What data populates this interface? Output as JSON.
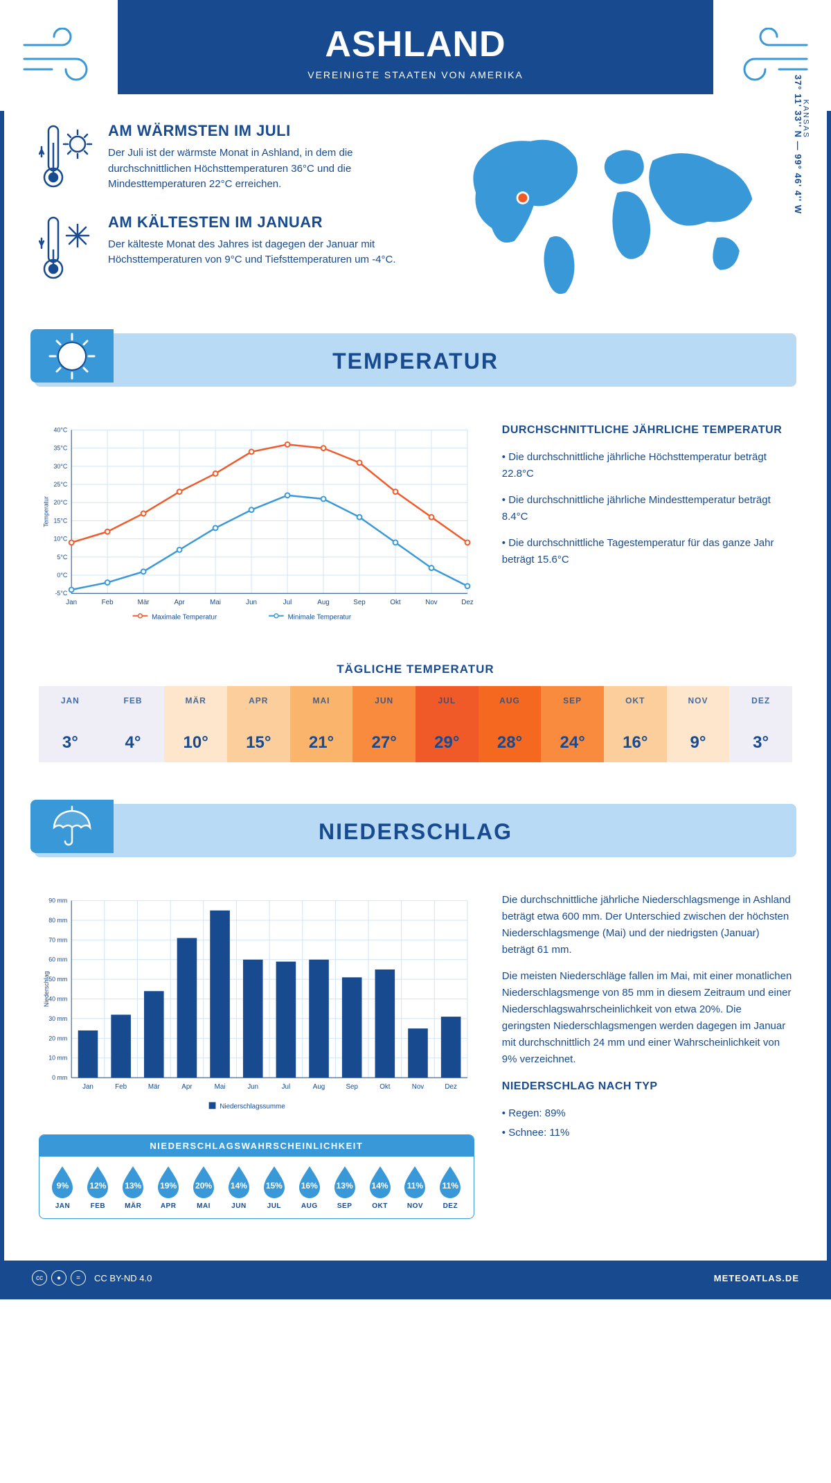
{
  "header": {
    "title": "ASHLAND",
    "subtitle": "VEREINIGTE STAATEN VON AMERIKA"
  },
  "location": {
    "state": "KANSAS",
    "coords": "37° 11' 33'' N — 99° 46' 4'' W"
  },
  "facts": {
    "warmest": {
      "title": "AM WÄRMSTEN IM JULI",
      "text": "Der Juli ist der wärmste Monat in Ashland, in dem die durchschnittlichen Höchsttemperaturen 36°C und die Mindesttemperaturen 22°C erreichen."
    },
    "coldest": {
      "title": "AM KÄLTESTEN IM JANUAR",
      "text": "Der kälteste Monat des Jahres ist dagegen der Januar mit Höchsttemperaturen von 9°C und Tiefsttemperaturen um -4°C."
    }
  },
  "sections": {
    "temp": "TEMPERATUR",
    "precip": "NIEDERSCHLAG"
  },
  "months": [
    "Jan",
    "Feb",
    "Mär",
    "Apr",
    "Mai",
    "Jun",
    "Jul",
    "Aug",
    "Sep",
    "Okt",
    "Nov",
    "Dez"
  ],
  "months_upper": [
    "JAN",
    "FEB",
    "MÄR",
    "APR",
    "MAI",
    "JUN",
    "JUL",
    "AUG",
    "SEP",
    "OKT",
    "NOV",
    "DEZ"
  ],
  "temp_chart": {
    "ylabel": "Temperatur",
    "ymin": -5,
    "ymax": 40,
    "ystep": 5,
    "max_series": {
      "label": "Maximale Temperatur",
      "color": "#f05a28",
      "values": [
        9,
        12,
        17,
        23,
        28,
        34,
        36,
        35,
        31,
        23,
        16,
        9
      ]
    },
    "min_series": {
      "label": "Minimale Temperatur",
      "color": "#3999d8",
      "values": [
        -4,
        -2,
        1,
        7,
        13,
        18,
        22,
        21,
        16,
        9,
        2,
        -3
      ]
    },
    "grid_color": "#cfe4f6",
    "axis_color": "#174a8e"
  },
  "temp_text": {
    "heading": "DURCHSCHNITTLICHE JÄHRLICHE TEMPERATUR",
    "b1": "• Die durchschnittliche jährliche Höchsttemperatur beträgt 22.8°C",
    "b2": "• Die durchschnittliche jährliche Mindesttemperatur beträgt 8.4°C",
    "b3": "• Die durchschnittliche Tagestemperatur für das ganze Jahr beträgt 15.6°C"
  },
  "daily_temp": {
    "heading": "TÄGLICHE TEMPERATUR",
    "values": [
      "3°",
      "4°",
      "10°",
      "15°",
      "21°",
      "27°",
      "29°",
      "28°",
      "24°",
      "16°",
      "9°",
      "3°"
    ],
    "colors": [
      "#efeef6",
      "#efeef6",
      "#fde6cc",
      "#fcce9c",
      "#fbb46b",
      "#f88b3e",
      "#f05a28",
      "#f4691f",
      "#f88b3e",
      "#fcce9c",
      "#fde6cc",
      "#efeef6"
    ]
  },
  "precip_chart": {
    "ylabel": "Niederschlag",
    "ymax": 90,
    "ystep": 10,
    "values": [
      24,
      32,
      44,
      71,
      85,
      60,
      59,
      60,
      51,
      55,
      25,
      31
    ],
    "bar_color": "#174a8e",
    "grid_color": "#cfe4f6",
    "legend": "Niederschlagssumme"
  },
  "precip_text": {
    "p1": "Die durchschnittliche jährliche Niederschlagsmenge in Ashland beträgt etwa 600 mm. Der Unterschied zwischen der höchsten Niederschlagsmenge (Mai) und der niedrigsten (Januar) beträgt 61 mm.",
    "p2": "Die meisten Niederschläge fallen im Mai, mit einer monatlichen Niederschlagsmenge von 85 mm in diesem Zeitraum und einer Niederschlagswahrscheinlichkeit von etwa 20%. Die geringsten Niederschlagsmengen werden dagegen im Januar mit durchschnittlich 24 mm und einer Wahrscheinlichkeit von 9% verzeichnet.",
    "h2": "NIEDERSCHLAG NACH TYP",
    "b1": "• Regen: 89%",
    "b2": "• Schnee: 11%"
  },
  "precip_prob": {
    "heading": "NIEDERSCHLAGSWAHRSCHEINLICHKEIT",
    "values": [
      "9%",
      "12%",
      "13%",
      "19%",
      "20%",
      "14%",
      "15%",
      "16%",
      "13%",
      "14%",
      "11%",
      "11%"
    ],
    "drop_color": "#3999d8"
  },
  "footer": {
    "license": "CC BY-ND 4.0",
    "site": "METEOATLAS.DE"
  },
  "colors": {
    "primary": "#174a8e",
    "light": "#b8daf5",
    "mid": "#3999d8"
  }
}
